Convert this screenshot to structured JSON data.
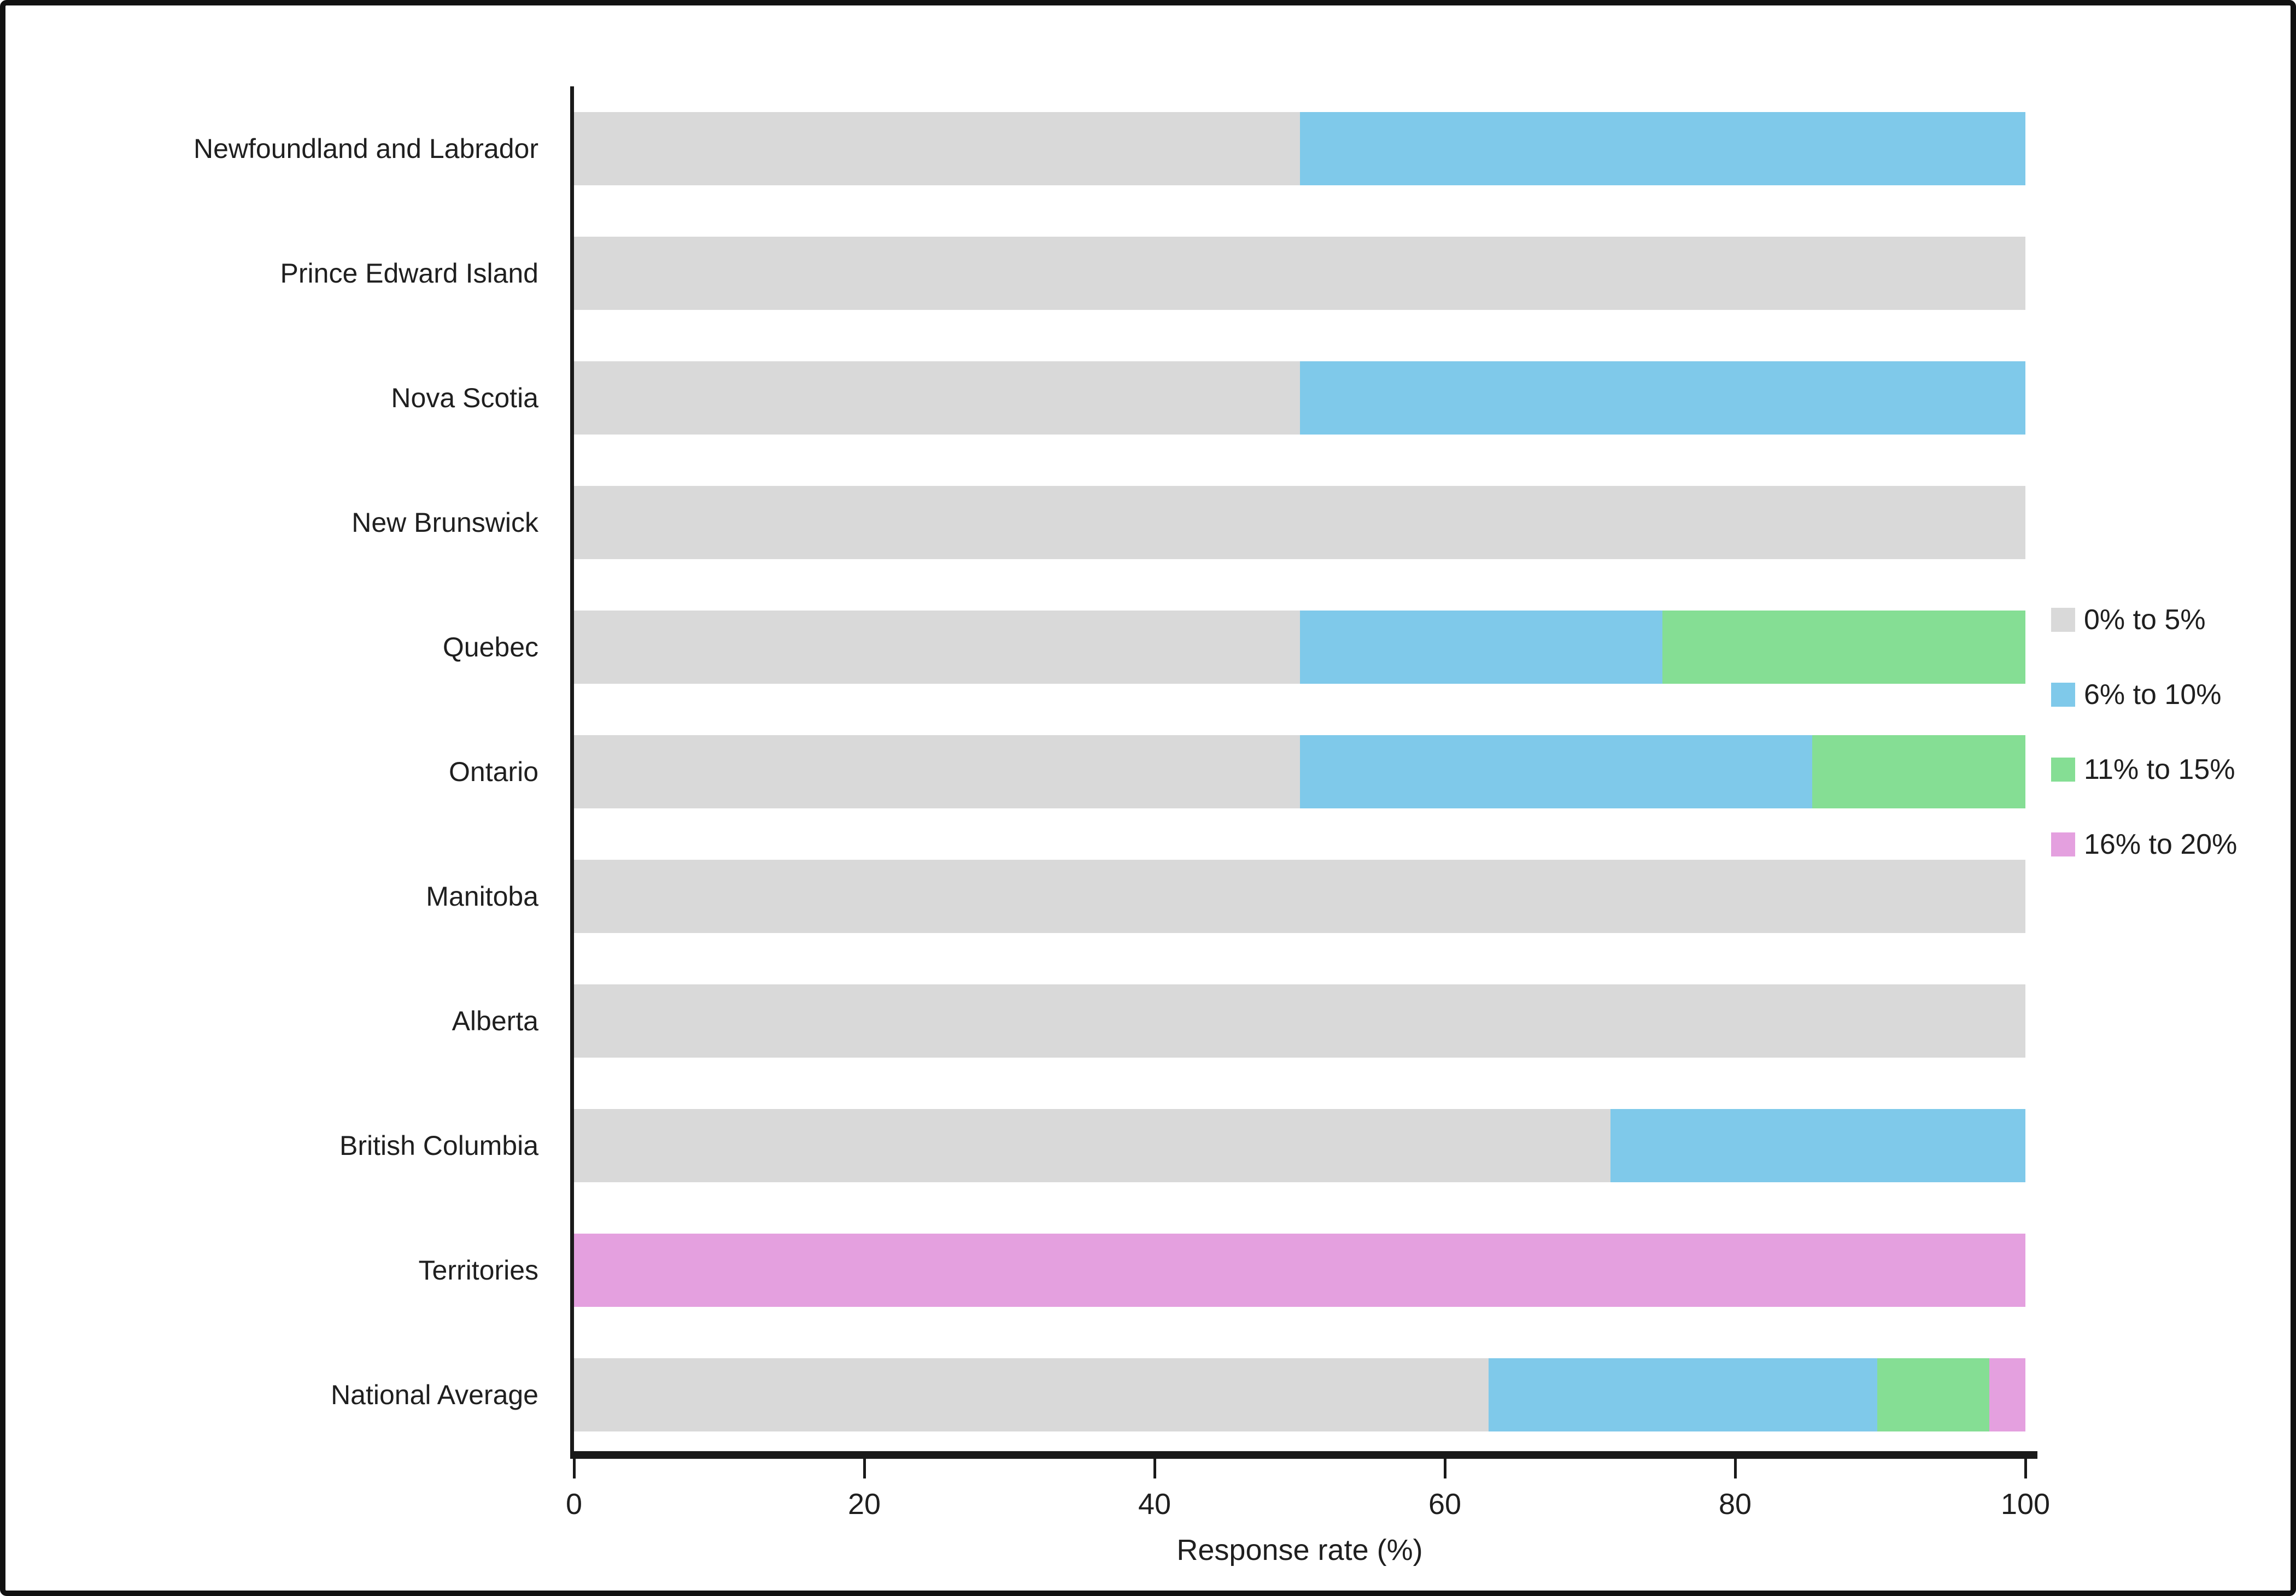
{
  "chart_data": {
    "type": "bar",
    "orientation": "horizontal",
    "stacked": true,
    "xlabel": "Response rate (%)",
    "xlim": [
      0,
      100
    ],
    "xticks": [
      0,
      20,
      40,
      60,
      80,
      100
    ],
    "grid": false,
    "legend_position": "right",
    "categories": [
      "Newfoundland and Labrador",
      "Prince Edward Island",
      "Nova Scotia",
      "New Brunswick",
      "Quebec",
      "Ontario",
      "Manitoba",
      "Alberta",
      "British Columbia",
      "Territories",
      "National Average"
    ],
    "series": [
      {
        "name": "0% to 5%",
        "color": "#D9D9D9",
        "values": [
          50,
          100,
          50,
          100,
          50,
          50,
          100,
          100,
          71.4,
          0,
          63
        ]
      },
      {
        "name": "6% to 10%",
        "color": "#7FC9EA",
        "values": [
          50,
          0,
          50,
          0,
          25,
          35.3,
          0,
          0,
          28.6,
          0,
          26.8
        ]
      },
      {
        "name": "11% to 15%",
        "color": "#85DE94",
        "values": [
          0,
          0,
          0,
          0,
          25,
          14.7,
          0,
          0,
          0,
          0,
          7.7
        ]
      },
      {
        "name": "16% to 20%",
        "color": "#E4A0DF",
        "values": [
          0,
          0,
          0,
          0,
          0,
          0,
          0,
          0,
          0,
          100,
          2.5
        ]
      }
    ]
  },
  "colors": {
    "axis": "#1a1a1a",
    "text": "#1f1f1f",
    "background": "#ffffff",
    "border": "#111111"
  }
}
